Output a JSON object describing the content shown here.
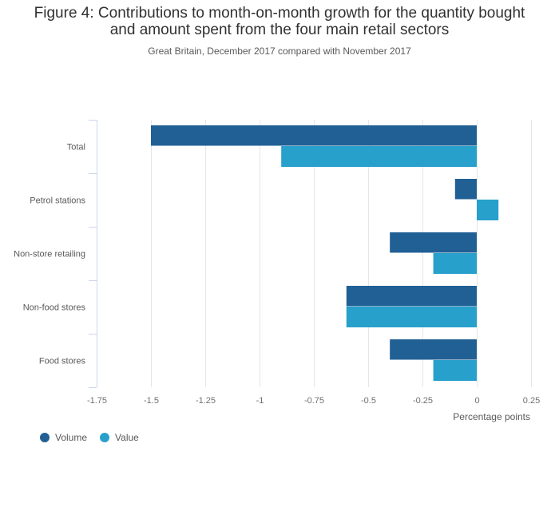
{
  "chart_data": {
    "type": "bar",
    "orientation": "horizontal",
    "title": "Figure 4: Contributions to month-on-month growth for the quantity bought and amount spent from the four main retail sectors",
    "title_lines": [
      "Figure 4: Contributions to month-on-month growth for the quantity bought",
      "and amount spent from the four main retail sectors"
    ],
    "subtitle": "Great Britain, December 2017 compared with November 2017",
    "categories": [
      "Total",
      "Petrol stations",
      "Non-store retailing",
      "Non-food stores",
      "Food stores"
    ],
    "series": [
      {
        "name": "Volume",
        "color": "#206095",
        "values": [
          -1.5,
          -0.1,
          -0.4,
          -0.6,
          -0.4
        ]
      },
      {
        "name": "Value",
        "color": "#27a0cc",
        "values": [
          -0.9,
          0.1,
          -0.2,
          -0.6,
          -0.2
        ]
      }
    ],
    "xlabel": "Percentage points",
    "ylabel": "",
    "xlim": [
      -1.75,
      0.25
    ],
    "xticks": [
      -1.75,
      -1.5,
      -1.25,
      -1,
      -0.75,
      -0.5,
      -0.25,
      0,
      0.25
    ],
    "xtick_labels": [
      "-1.75",
      "-1.5",
      "-1.25",
      "-1",
      "-0.75",
      "-0.5",
      "-0.25",
      "0",
      "0.25"
    ],
    "grid": true,
    "legend_position": "bottom-left"
  }
}
